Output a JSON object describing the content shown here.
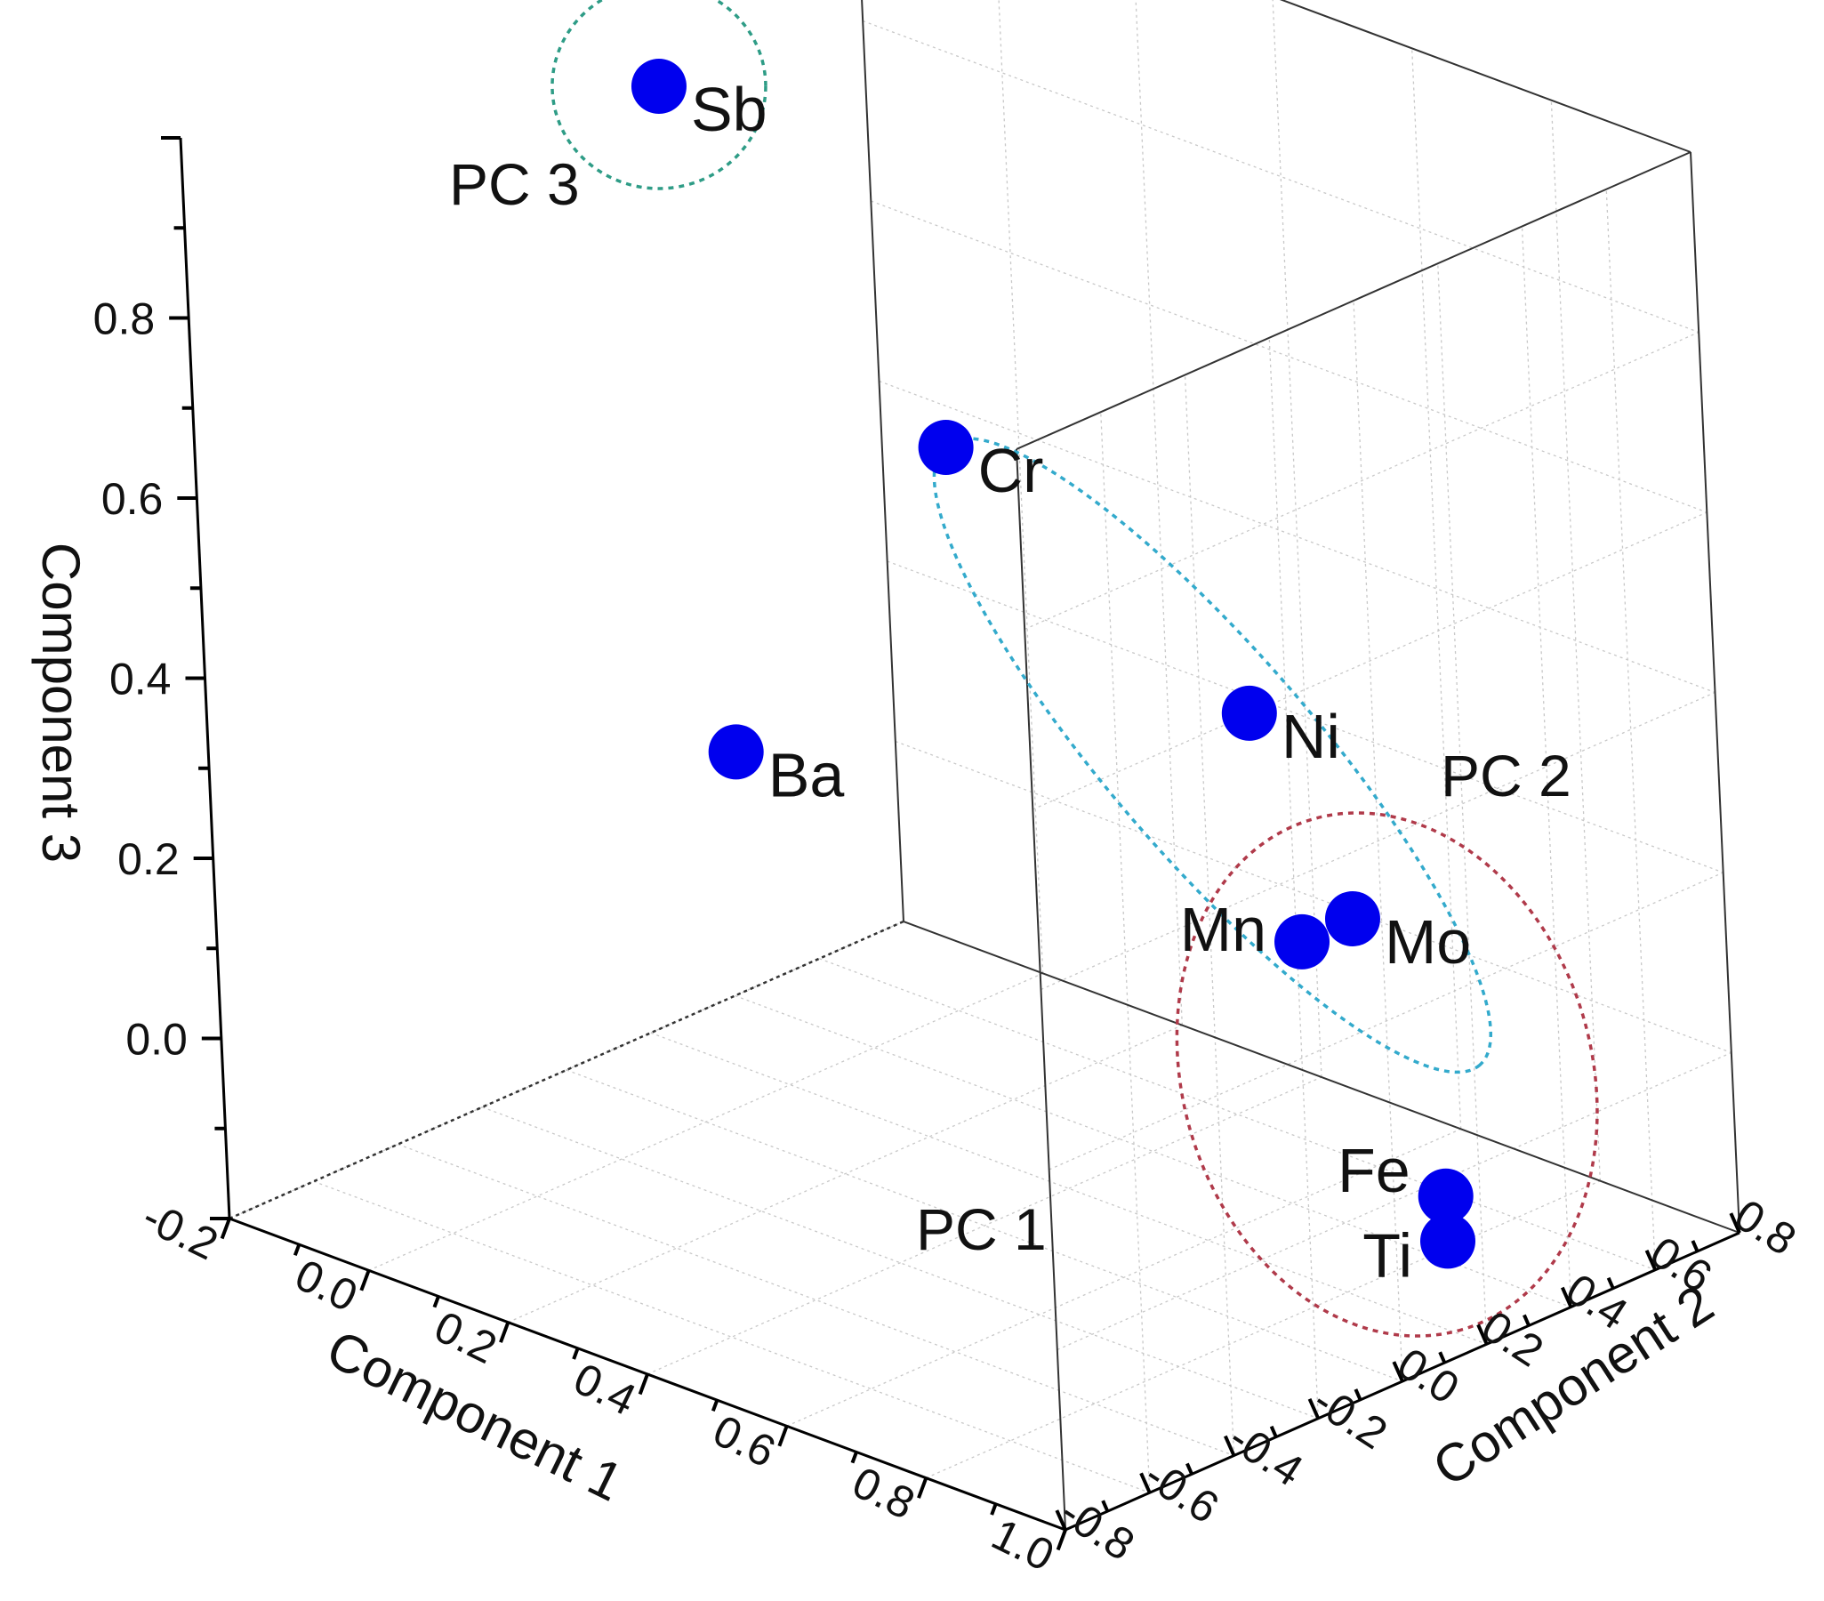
{
  "chart_data": {
    "type": "scatter3d",
    "title": "",
    "axes": {
      "x": {
        "label": "Component 1",
        "range": [
          -0.2,
          1.0
        ],
        "ticks": [
          "-0.2",
          "0.0",
          "0.2",
          "0.4",
          "0.6",
          "0.8",
          "1.0"
        ]
      },
      "y": {
        "label": "Component 2",
        "range": [
          -0.8,
          0.8
        ],
        "ticks": [
          "-0.8",
          "-0.6",
          "-0.4",
          "-0.2",
          "0.0",
          "0.2",
          "0.4",
          "0.6",
          "0.8"
        ]
      },
      "z": {
        "label": "Component 3",
        "range": [
          -0.2,
          1.0
        ],
        "ticks": [
          "0.0",
          "0.2",
          "0.4",
          "0.6",
          "0.8"
        ]
      }
    },
    "grid": true,
    "point_color": "#0000ee",
    "points": [
      {
        "label": "Sb",
        "x": 0.0,
        "y": 0.0,
        "z": 0.95
      },
      {
        "label": "Ba",
        "x": 0.1,
        "y": -0.05,
        "z": 0.25
      },
      {
        "label": "Cr",
        "x": 0.05,
        "y": 0.55,
        "z": 0.45
      },
      {
        "label": "Ni",
        "x": 0.35,
        "y": 0.75,
        "z": 0.2
      },
      {
        "label": "Mn",
        "x": 0.6,
        "y": 0.45,
        "z": 0.08
      },
      {
        "label": "Mo",
        "x": 0.55,
        "y": 0.65,
        "z": 0.05
      },
      {
        "label": "Fe",
        "x": 0.95,
        "y": 0.2,
        "z": -0.05
      },
      {
        "label": "Ti",
        "x": 0.95,
        "y": 0.2,
        "z": -0.1
      }
    ],
    "groups": [
      {
        "label": "PC 3",
        "members": [
          "Sb"
        ],
        "color": "#2e9c86"
      },
      {
        "label": "PC 2",
        "members": [
          "Cr",
          "Ni",
          "Mn",
          "Mo"
        ],
        "color": "#33aacc"
      },
      {
        "label": "PC 1",
        "members": [
          "Mn",
          "Mo",
          "Fe",
          "Ti"
        ],
        "color": "#b03a4a"
      }
    ]
  }
}
